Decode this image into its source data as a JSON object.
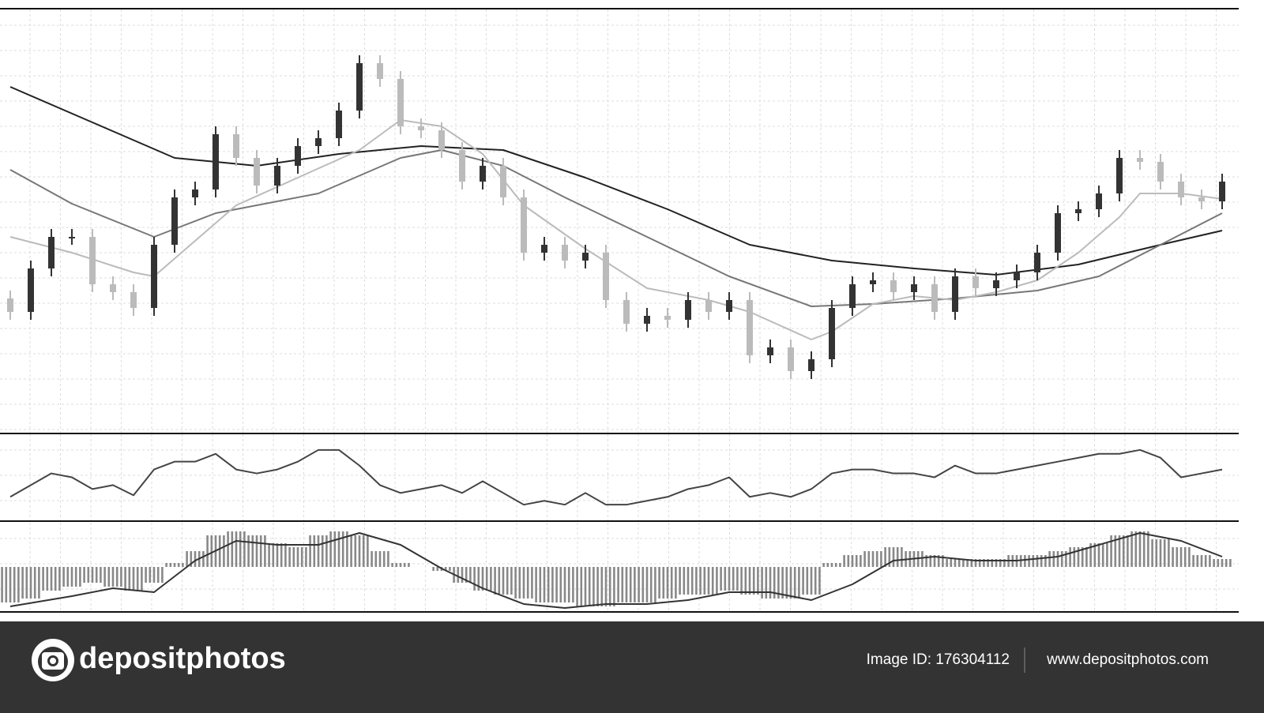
{
  "chart_data": [
    {
      "type": "candlestick",
      "grid": true,
      "ylim": [
        0,
        536
      ],
      "up_color": "#333333",
      "down_color": "#bbbbbb",
      "open": [
        170,
        153,
        208,
        248,
        248,
        188,
        178,
        158,
        238,
        298,
        308,
        378,
        348,
        313,
        338,
        363,
        373,
        408,
        468,
        448,
        388,
        383,
        358,
        318,
        338,
        298,
        228,
        238,
        218,
        228,
        168,
        138,
        148,
        143,
        168,
        153,
        168,
        98,
        108,
        78,
        93,
        158,
        188,
        193,
        178,
        188,
        153,
        198,
        183,
        193,
        203,
        228,
        278,
        283,
        303,
        348,
        343,
        318,
        298,
        293
      ],
      "high": [
        180,
        218,
        258,
        258,
        258,
        198,
        188,
        248,
        308,
        318,
        388,
        388,
        358,
        348,
        373,
        383,
        418,
        478,
        478,
        458,
        398,
        393,
        368,
        348,
        348,
        308,
        248,
        248,
        238,
        238,
        178,
        158,
        158,
        178,
        178,
        178,
        178,
        118,
        118,
        103,
        168,
        198,
        203,
        203,
        198,
        198,
        208,
        208,
        203,
        213,
        238,
        288,
        293,
        313,
        358,
        358,
        353,
        328,
        308,
        328
      ],
      "low": [
        143,
        143,
        198,
        238,
        178,
        168,
        148,
        148,
        228,
        288,
        298,
        338,
        303,
        303,
        328,
        353,
        363,
        398,
        438,
        378,
        373,
        348,
        308,
        308,
        288,
        218,
        218,
        208,
        208,
        158,
        128,
        128,
        133,
        133,
        143,
        143,
        88,
        88,
        68,
        68,
        83,
        148,
        178,
        168,
        168,
        143,
        143,
        173,
        173,
        183,
        193,
        218,
        268,
        273,
        293,
        333,
        308,
        288,
        283,
        283
      ],
      "close": [
        153,
        208,
        248,
        248,
        188,
        178,
        158,
        238,
        298,
        308,
        378,
        348,
        313,
        338,
        363,
        373,
        408,
        468,
        448,
        388,
        383,
        358,
        318,
        338,
        298,
        228,
        238,
        218,
        228,
        168,
        138,
        148,
        143,
        168,
        153,
        168,
        98,
        108,
        78,
        93,
        158,
        188,
        193,
        178,
        188,
        153,
        198,
        183,
        193,
        203,
        228,
        278,
        283,
        303,
        348,
        343,
        318,
        298,
        293,
        318
      ],
      "series": [
        {
          "color": "#222222",
          "x": [
            0,
            4,
            8,
            12,
            16,
            20,
            24,
            28,
            32,
            36,
            40,
            44,
            48,
            52,
            56,
            59
          ],
          "values": [
            438,
            393,
            348,
            338,
            353,
            363,
            358,
            323,
            283,
            238,
            218,
            208,
            200,
            213,
            238,
            256
          ]
        },
        {
          "color": "#777777",
          "x": [
            0,
            3,
            7,
            10,
            15,
            19,
            21,
            24,
            27,
            31,
            35,
            39,
            42,
            46,
            50,
            53,
            56,
            59
          ],
          "values": [
            333,
            290,
            248,
            278,
            303,
            348,
            358,
            338,
            298,
            248,
            198,
            160,
            163,
            170,
            180,
            198,
            238,
            278
          ]
        },
        {
          "color": "#bbbbbb",
          "x": [
            0,
            3,
            6,
            7,
            9,
            11,
            14,
            17,
            19,
            21,
            23,
            25,
            28,
            31,
            34,
            36,
            39,
            40,
            42,
            44,
            46,
            48,
            50,
            52,
            54,
            55,
            57,
            59
          ],
          "values": [
            248,
            228,
            203,
            198,
            243,
            288,
            323,
            358,
            396,
            388,
            353,
            288,
            233,
            183,
            168,
            153,
            118,
            128,
            163,
            173,
            168,
            178,
            193,
            228,
            273,
            303,
            303,
            296
          ]
        }
      ]
    },
    {
      "type": "line",
      "grid": true,
      "ylim": [
        0,
        110
      ],
      "color": "#444444",
      "values": [
        30,
        45,
        60,
        55,
        40,
        45,
        32,
        65,
        75,
        75,
        85,
        65,
        60,
        65,
        75,
        90,
        90,
        70,
        45,
        35,
        40,
        45,
        35,
        50,
        35,
        20,
        25,
        20,
        35,
        20,
        20,
        25,
        30,
        40,
        45,
        55,
        30,
        35,
        30,
        40,
        60,
        65,
        65,
        60,
        60,
        55,
        70,
        60,
        60,
        65,
        70,
        75,
        80,
        85,
        85,
        90,
        80,
        55,
        60,
        65
      ]
    },
    {
      "type": "bar",
      "grid": true,
      "ylim": [
        -57,
        56
      ],
      "color": "#888888",
      "values": [
        -45,
        -40,
        -30,
        -25,
        -20,
        -25,
        -30,
        -20,
        5,
        20,
        40,
        45,
        40,
        30,
        25,
        40,
        45,
        40,
        20,
        5,
        0,
        -5,
        -20,
        -30,
        -35,
        -40,
        -45,
        -45,
        -50,
        -50,
        -45,
        -45,
        -40,
        -35,
        -35,
        -30,
        -35,
        -40,
        -40,
        -35,
        5,
        15,
        20,
        25,
        20,
        15,
        10,
        10,
        10,
        15,
        15,
        20,
        25,
        30,
        40,
        45,
        35,
        25,
        15,
        10
      ],
      "signal": {
        "color": "#333333",
        "x": [
          0,
          3,
          5,
          7,
          9,
          11,
          13,
          15,
          17,
          19,
          21,
          23,
          25,
          27,
          29,
          31,
          33,
          35,
          37,
          39,
          41,
          43,
          45,
          47,
          49,
          51,
          53,
          55,
          57,
          59
        ],
        "values": [
          -50,
          -37,
          -27,
          -32,
          8,
          33,
          28,
          28,
          43,
          28,
          -2,
          -27,
          -47,
          -52,
          -47,
          -47,
          -42,
          -32,
          -32,
          -42,
          -22,
          8,
          13,
          8,
          8,
          13,
          28,
          43,
          33,
          13
        ]
      }
    }
  ],
  "footer": {
    "logo": "depositphotos",
    "image_id": "Image ID: 176304112",
    "url": "www.depositphotos.com"
  }
}
